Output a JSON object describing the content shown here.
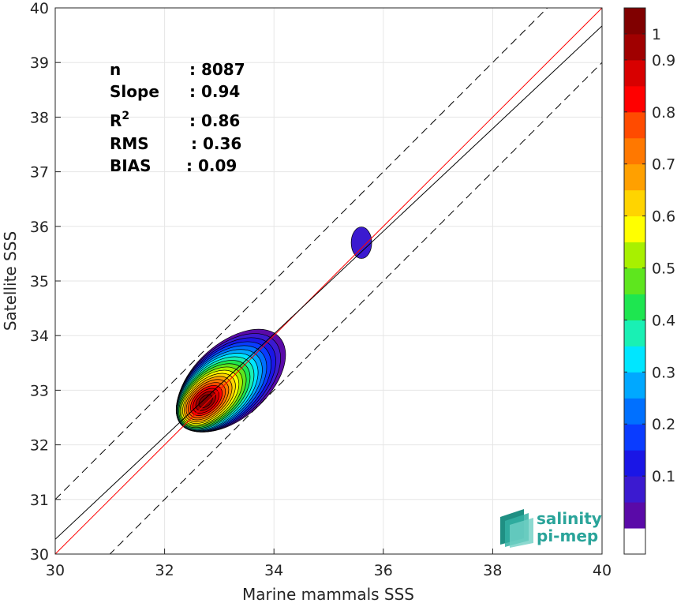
{
  "chart_data": {
    "type": "scatter",
    "subtype": "density-contour",
    "xlabel": "Marine mammals SSS",
    "ylabel": "Satellite SSS",
    "xlim": [
      30,
      40
    ],
    "ylim": [
      30,
      40
    ],
    "xticks": [
      30,
      32,
      34,
      36,
      38,
      40
    ],
    "yticks": [
      30,
      31,
      32,
      33,
      34,
      35,
      36,
      37,
      38,
      39,
      40
    ],
    "grid": true,
    "stats": [
      {
        "name": "n",
        "value": ": 8087"
      },
      {
        "name": "Slope",
        "value": ": 0.94"
      },
      {
        "name": "R",
        "sup": "2",
        "value": ": 0.86"
      },
      {
        "name": "RMS",
        "value": ": 0.36"
      },
      {
        "name": "BIAS",
        "value": ": 0.09"
      }
    ],
    "lines": [
      {
        "kind": "one-to-one",
        "color": "#ff0000",
        "style": "solid",
        "slope": 1,
        "intercept": 0
      },
      {
        "kind": "regression",
        "color": "#000000",
        "style": "solid",
        "slope": 0.94,
        "intercept": 2.07
      },
      {
        "kind": "upper-bound",
        "color": "#000000",
        "style": "dashed",
        "slope": 1,
        "intercept": 1
      },
      {
        "kind": "lower-bound",
        "color": "#000000",
        "style": "dashed",
        "slope": 1,
        "intercept": -1
      }
    ],
    "density_peaks": [
      {
        "x": 32.75,
        "y": 32.8,
        "value": 1.0
      },
      {
        "x": 35.6,
        "y": 35.7,
        "value": 0.1
      }
    ],
    "colorbar": {
      "ticks": [
        0.1,
        0.2,
        0.3,
        0.4,
        0.5,
        0.6,
        0.7,
        0.8,
        0.9,
        1
      ],
      "tick_labels": [
        "0.1",
        "0.2",
        "0.3",
        "0.4",
        "0.5",
        "0.6",
        "0.7",
        "0.8",
        "0.9",
        "1"
      ],
      "range": [
        0,
        1
      ],
      "colors": [
        "#ffffff",
        "#5a0aa8",
        "#3b1ad0",
        "#1a16e6",
        "#0a3cff",
        "#0070ff",
        "#00a8ff",
        "#00e6ff",
        "#19f0b4",
        "#1ee650",
        "#5ee61e",
        "#a8f000",
        "#ffff00",
        "#ffd400",
        "#ffa000",
        "#ff7800",
        "#ff4b00",
        "#ff0000",
        "#d80000",
        "#a00000",
        "#800000"
      ]
    }
  },
  "logo": {
    "line1": "salinity",
    "line2": "pi-mep"
  }
}
